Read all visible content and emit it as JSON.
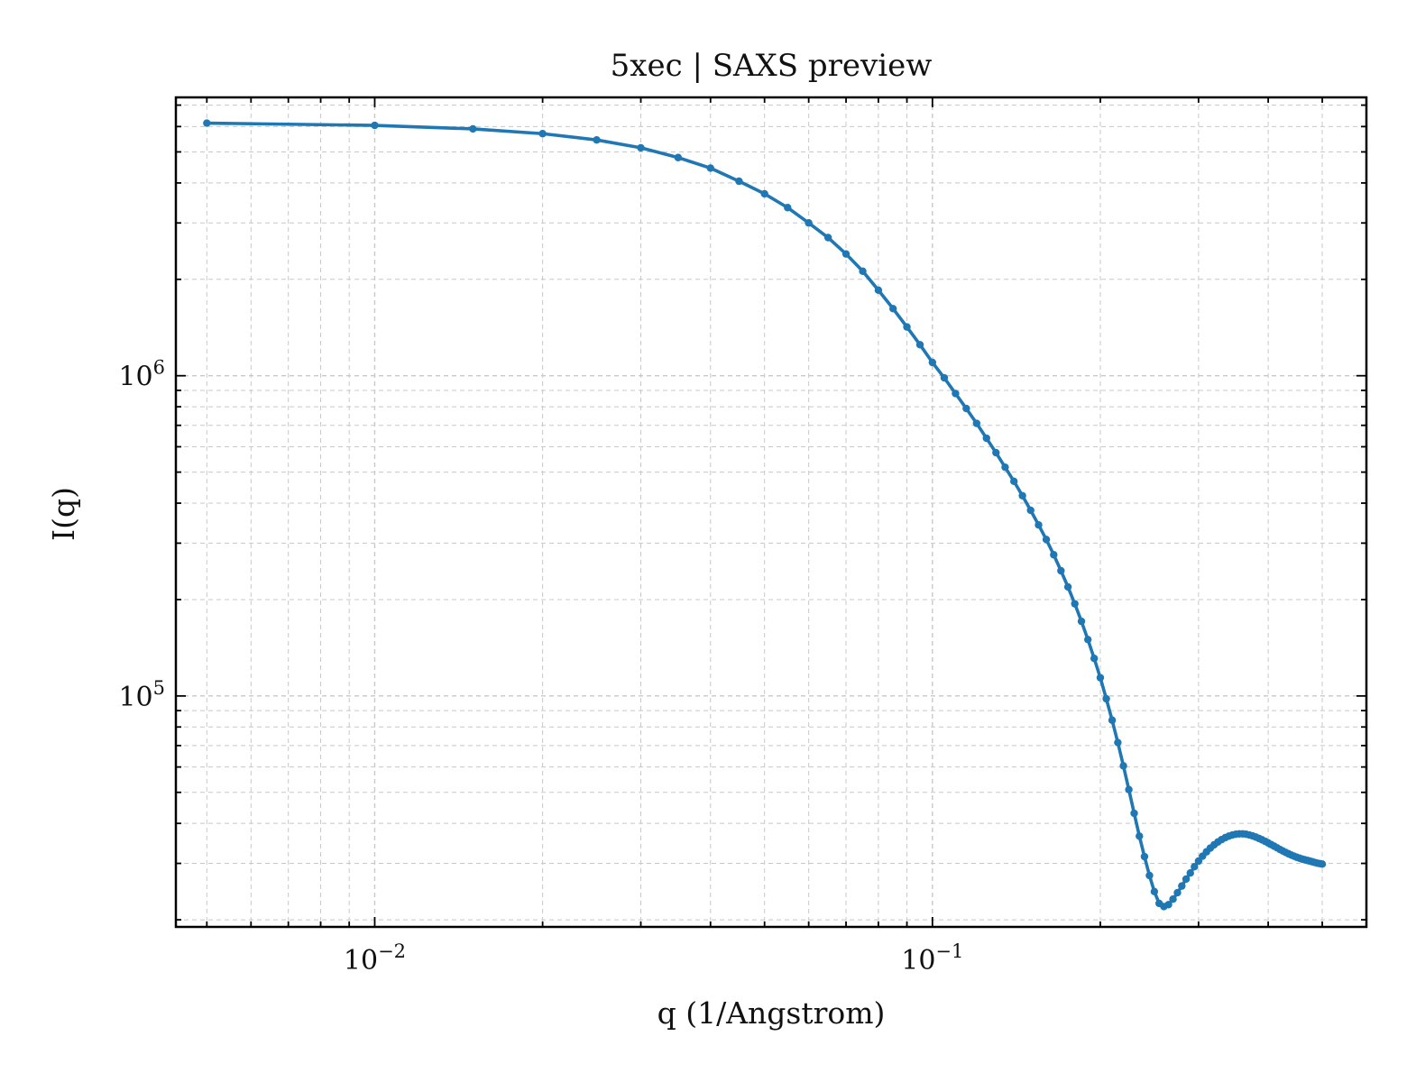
{
  "chart_data": {
    "type": "line",
    "title": "5xec | SAXS preview",
    "xlabel": "q (1/Angstrom)",
    "ylabel": "I(q)",
    "xscale": "log",
    "yscale": "log",
    "xlim": [
      0.0044,
      0.6
    ],
    "ylim": [
      19000,
      7400000
    ],
    "grid": true,
    "legend": "none",
    "x_ticks": [
      {
        "base": "10",
        "exp": "−2",
        "value": 0.01
      },
      {
        "base": "10",
        "exp": "−1",
        "value": 0.1
      }
    ],
    "y_ticks": [
      {
        "base": "10",
        "exp": "5",
        "value": 100000
      },
      {
        "base": "10",
        "exp": "6",
        "value": 1000000
      }
    ],
    "series": [
      {
        "color": "#1f77b4",
        "marker": "dot",
        "x": [
          0.005,
          0.01,
          0.015,
          0.02,
          0.025,
          0.03,
          0.035,
          0.04,
          0.045,
          0.05,
          0.055,
          0.06,
          0.065,
          0.07,
          0.075,
          0.08,
          0.085,
          0.09,
          0.095,
          0.1,
          0.105,
          0.11,
          0.115,
          0.12,
          0.125,
          0.13,
          0.135,
          0.14,
          0.145,
          0.15,
          0.155,
          0.16,
          0.165,
          0.17,
          0.175,
          0.18,
          0.185,
          0.19,
          0.195,
          0.2,
          0.205,
          0.21,
          0.215,
          0.22,
          0.225,
          0.23,
          0.235,
          0.24,
          0.245,
          0.25,
          0.255,
          0.26,
          0.265,
          0.27,
          0.275,
          0.28,
          0.285,
          0.29,
          0.295,
          0.3,
          0.305,
          0.31,
          0.315,
          0.32,
          0.325,
          0.33,
          0.335,
          0.34,
          0.345,
          0.35,
          0.355,
          0.36,
          0.365,
          0.37,
          0.375,
          0.38,
          0.385,
          0.39,
          0.395,
          0.4,
          0.405,
          0.41,
          0.415,
          0.42,
          0.425,
          0.43,
          0.435,
          0.44,
          0.445,
          0.45,
          0.455,
          0.46,
          0.465,
          0.47,
          0.475,
          0.48,
          0.485,
          0.49,
          0.495,
          0.5
        ],
        "y": [
          6150000,
          6050000,
          5900000,
          5700000,
          5450000,
          5150000,
          4800000,
          4450000,
          4050000,
          3700000,
          3350000,
          3000000,
          2700000,
          2400000,
          2120000,
          1850000,
          1620000,
          1420000,
          1250000,
          1100000,
          985000,
          880000,
          790000,
          710000,
          638000,
          575000,
          518000,
          468000,
          422000,
          380000,
          342000,
          308000,
          276000,
          246000,
          219000,
          194000,
          171000,
          150000,
          131000,
          114000,
          98000,
          84000,
          71500,
          60500,
          51000,
          43000,
          36500,
          31500,
          27500,
          24500,
          22500,
          22000,
          22300,
          23200,
          24300,
          25500,
          26800,
          28000,
          29300,
          30500,
          31600,
          32600,
          33500,
          34300,
          35000,
          35600,
          36100,
          36500,
          36800,
          37000,
          37100,
          37100,
          37000,
          36800,
          36550,
          36250,
          35900,
          35550,
          35150,
          34750,
          34350,
          33950,
          33550,
          33150,
          32800,
          32450,
          32150,
          31850,
          31600,
          31350,
          31150,
          30950,
          30800,
          30650,
          30500,
          30350,
          30200,
          30050,
          29950,
          29850
        ]
      }
    ]
  }
}
